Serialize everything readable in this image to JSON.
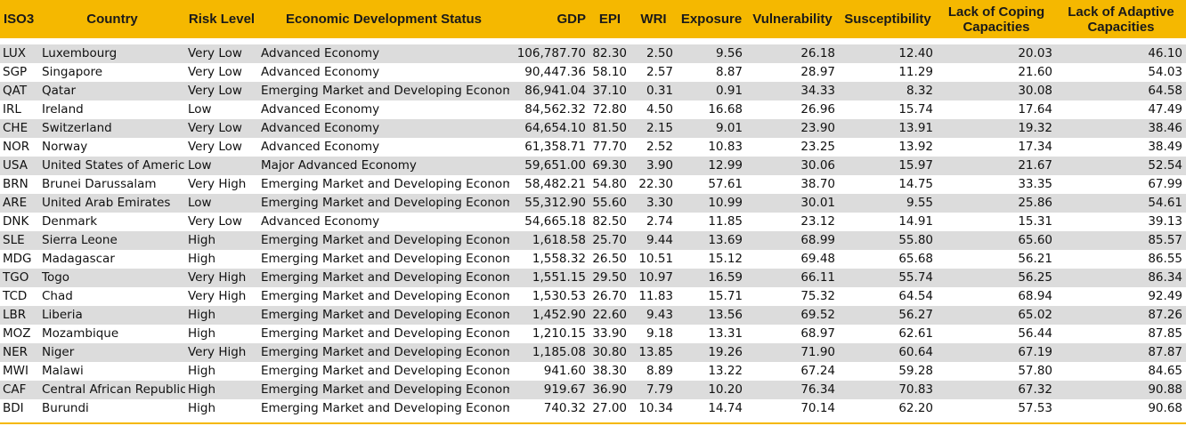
{
  "columns": [
    "ISO3",
    "Country",
    "Risk Level",
    "Economic Development Status",
    "GDP",
    "EPI",
    "WRI",
    "Exposure",
    "Vulnerability",
    "Susceptibility",
    "Lack of Coping Capacities",
    "Lack of Adaptive Capacities"
  ],
  "rows": [
    [
      "LUX",
      "Luxembourg",
      "Very Low",
      "Advanced Economy",
      "106,787.70",
      "82.30",
      "2.50",
      "9.56",
      "26.18",
      "12.40",
      "20.03",
      "46.10"
    ],
    [
      "SGP",
      "Singapore",
      "Very Low",
      "Advanced Economy",
      "90,447.36",
      "58.10",
      "2.57",
      "8.87",
      "28.97",
      "11.29",
      "21.60",
      "54.03"
    ],
    [
      "QAT",
      "Qatar",
      "Very Low",
      "Emerging Market and Developing Economy",
      "86,941.04",
      "37.10",
      "0.31",
      "0.91",
      "34.33",
      "8.32",
      "30.08",
      "64.58"
    ],
    [
      "IRL",
      "Ireland",
      "Low",
      "Advanced Economy",
      "84,562.32",
      "72.80",
      "4.50",
      "16.68",
      "26.96",
      "15.74",
      "17.64",
      "47.49"
    ],
    [
      "CHE",
      "Switzerland",
      "Very Low",
      "Advanced Economy",
      "64,654.10",
      "81.50",
      "2.15",
      "9.01",
      "23.90",
      "13.91",
      "19.32",
      "38.46"
    ],
    [
      "NOR",
      "Norway",
      "Very Low",
      "Advanced Economy",
      "61,358.71",
      "77.70",
      "2.52",
      "10.83",
      "23.25",
      "13.92",
      "17.34",
      "38.49"
    ],
    [
      "USA",
      "United States of America",
      "Low",
      "Major Advanced Economy",
      "59,651.00",
      "69.30",
      "3.90",
      "12.99",
      "30.06",
      "15.97",
      "21.67",
      "52.54"
    ],
    [
      "BRN",
      "Brunei Darussalam",
      "Very High",
      "Emerging Market and Developing Economy",
      "58,482.21",
      "54.80",
      "22.30",
      "57.61",
      "38.70",
      "14.75",
      "33.35",
      "67.99"
    ],
    [
      "ARE",
      "United Arab Emirates",
      "Low",
      "Emerging Market and Developing Economy",
      "55,312.90",
      "55.60",
      "3.30",
      "10.99",
      "30.01",
      "9.55",
      "25.86",
      "54.61"
    ],
    [
      "DNK",
      "Denmark",
      "Very Low",
      "Advanced Economy",
      "54,665.18",
      "82.50",
      "2.74",
      "11.85",
      "23.12",
      "14.91",
      "15.31",
      "39.13"
    ],
    [
      "SLE",
      "Sierra Leone",
      "High",
      "Emerging Market and Developing Economy",
      "1,618.58",
      "25.70",
      "9.44",
      "13.69",
      "68.99",
      "55.80",
      "65.60",
      "85.57"
    ],
    [
      "MDG",
      "Madagascar",
      "High",
      "Emerging Market and Developing Economy",
      "1,558.32",
      "26.50",
      "10.51",
      "15.12",
      "69.48",
      "65.68",
      "56.21",
      "86.55"
    ],
    [
      "TGO",
      "Togo",
      "Very High",
      "Emerging Market and Developing Economy",
      "1,551.15",
      "29.50",
      "10.97",
      "16.59",
      "66.11",
      "55.74",
      "56.25",
      "86.34"
    ],
    [
      "TCD",
      "Chad",
      "Very High",
      "Emerging Market and Developing Economy",
      "1,530.53",
      "26.70",
      "11.83",
      "15.71",
      "75.32",
      "64.54",
      "68.94",
      "92.49"
    ],
    [
      "LBR",
      "Liberia",
      "High",
      "Emerging Market and Developing Economy",
      "1,452.90",
      "22.60",
      "9.43",
      "13.56",
      "69.52",
      "56.27",
      "65.02",
      "87.26"
    ],
    [
      "MOZ",
      "Mozambique",
      "High",
      "Emerging Market and Developing Economy",
      "1,210.15",
      "33.90",
      "9.18",
      "13.31",
      "68.97",
      "62.61",
      "56.44",
      "87.85"
    ],
    [
      "NER",
      "Niger",
      "Very High",
      "Emerging Market and Developing Economy",
      "1,185.08",
      "30.80",
      "13.85",
      "19.26",
      "71.90",
      "60.64",
      "67.19",
      "87.87"
    ],
    [
      "MWI",
      "Malawi",
      "High",
      "Emerging Market and Developing Economy",
      "941.60",
      "38.30",
      "8.89",
      "13.22",
      "67.24",
      "59.28",
      "57.80",
      "84.65"
    ],
    [
      "CAF",
      "Central African Republic",
      "High",
      "Emerging Market and Developing Economy",
      "919.67",
      "36.90",
      "7.79",
      "10.20",
      "76.34",
      "70.83",
      "67.32",
      "90.88"
    ],
    [
      "BDI",
      "Burundi",
      "High",
      "Emerging Market and Developing Economy",
      "740.32",
      "27.00",
      "10.34",
      "14.74",
      "70.14",
      "62.20",
      "57.53",
      "90.68"
    ]
  ],
  "colors": {
    "header_bg": "#f5b800",
    "stripe_bg": "#dcdcdc"
  }
}
